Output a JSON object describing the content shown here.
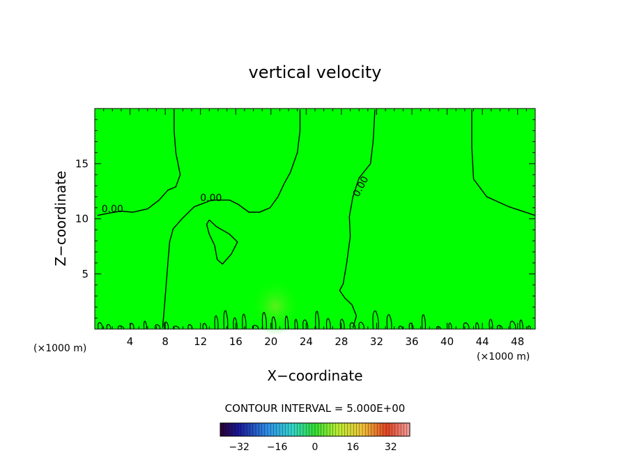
{
  "chart_data": {
    "type": "contour",
    "title": "vertical velocity",
    "xlabel": "X−coordinate",
    "ylabel": "Z−coordinate",
    "x_unit": "(×1000 m)",
    "y_unit": "(×1000 m)",
    "xlim": [
      0,
      50
    ],
    "ylim": [
      0,
      20
    ],
    "x_ticks": [
      "4",
      "8",
      "12",
      "16",
      "20",
      "24",
      "28",
      "32",
      "36",
      "40",
      "44",
      "48"
    ],
    "x_tick_values": [
      4,
      8,
      12,
      16,
      20,
      24,
      28,
      32,
      36,
      40,
      44,
      48
    ],
    "y_ticks": [
      "5",
      "10",
      "15"
    ],
    "y_tick_values": [
      5,
      10,
      15
    ],
    "contour_level_label": "0.00",
    "contour_label_positions": [
      {
        "x": 2.0,
        "y": 10.6
      },
      {
        "x": 13.2,
        "y": 11.6
      },
      {
        "x": 30.5,
        "y": 12.8
      }
    ],
    "contour_interval_text": "CONTOUR INTERVAL = 5.000E+00",
    "colorbar": {
      "range": [
        -40,
        40
      ],
      "ticks": [
        "−32",
        "−16",
        "0",
        "16",
        "32"
      ],
      "tick_values": [
        -32,
        -16,
        0,
        16,
        32
      ],
      "colormap": "rainbow"
    },
    "field_color": "#00ff00",
    "contour_color": "#000000",
    "contour_lines": [
      [
        [
          0.3,
          10.3
        ],
        [
          1.5,
          10.5
        ],
        [
          3.0,
          10.7
        ],
        [
          4.3,
          10.6
        ],
        [
          6.0,
          10.9
        ],
        [
          7.3,
          11.7
        ],
        [
          8.3,
          12.6
        ],
        [
          9.2,
          12.9
        ],
        [
          9.7,
          14.0
        ],
        [
          9.2,
          16.0
        ],
        [
          9.0,
          18.0
        ],
        [
          9.0,
          19.9
        ]
      ],
      [
        [
          23.3,
          19.9
        ],
        [
          23.3,
          18.0
        ],
        [
          23.0,
          16.0
        ],
        [
          22.2,
          14.2
        ],
        [
          21.5,
          13.2
        ],
        [
          20.8,
          12.0
        ],
        [
          19.9,
          11.0
        ],
        [
          18.7,
          10.6
        ],
        [
          17.5,
          10.6
        ],
        [
          16.3,
          11.3
        ],
        [
          15.3,
          11.7
        ],
        [
          13.3,
          11.7
        ],
        [
          11.3,
          11.1
        ],
        [
          9.9,
          10.0
        ],
        [
          8.9,
          9.1
        ],
        [
          8.5,
          7.9
        ],
        [
          8.3,
          6.0
        ],
        [
          8.1,
          4.0
        ],
        [
          7.9,
          2.0
        ],
        [
          7.7,
          0.1
        ]
      ],
      [
        [
          31.8,
          19.9
        ],
        [
          31.6,
          17.0
        ],
        [
          31.3,
          15.0
        ],
        [
          30.0,
          13.7
        ],
        [
          29.3,
          12.0
        ],
        [
          28.9,
          10.2
        ],
        [
          29.0,
          8.4
        ],
        [
          28.6,
          6.0
        ],
        [
          28.2,
          4.1
        ],
        [
          27.8,
          3.5
        ],
        [
          28.4,
          2.8
        ],
        [
          29.2,
          2.2
        ],
        [
          29.7,
          1.2
        ],
        [
          29.3,
          0.1
        ]
      ],
      [
        [
          42.8,
          19.9
        ],
        [
          42.8,
          16.5
        ],
        [
          43.0,
          13.6
        ],
        [
          44.5,
          12.0
        ],
        [
          47.0,
          11.1
        ],
        [
          50.0,
          10.3
        ]
      ],
      [
        [
          13.0,
          9.9
        ],
        [
          13.8,
          9.3
        ],
        [
          15.3,
          8.6
        ],
        [
          16.2,
          7.9
        ],
        [
          15.5,
          6.8
        ],
        [
          14.5,
          5.9
        ],
        [
          13.9,
          6.3
        ],
        [
          13.6,
          7.6
        ],
        [
          13.0,
          8.6
        ],
        [
          12.7,
          9.5
        ],
        [
          13.0,
          9.9
        ]
      ]
    ]
  }
}
